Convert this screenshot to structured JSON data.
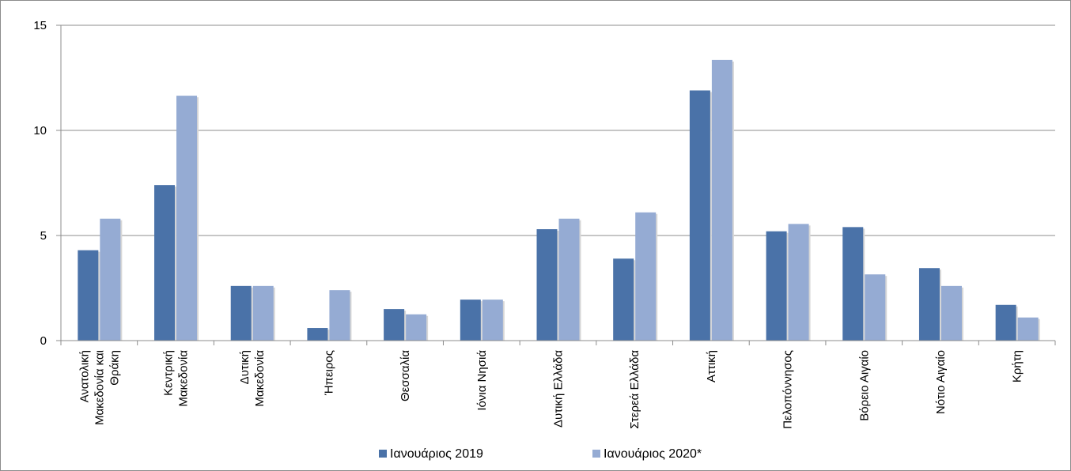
{
  "chart_data": {
    "type": "bar",
    "title": "",
    "xlabel": "",
    "ylabel": "",
    "ylim": [
      0,
      15
    ],
    "yticks": [
      0,
      5,
      10,
      15
    ],
    "grid": true,
    "legend_position": "bottom",
    "categories": [
      [
        "Ανατολική",
        "Μακεδονία και",
        "Θράκη"
      ],
      [
        "Κεντρική",
        "Μακεδονία"
      ],
      [
        "Δυτική",
        "Μακεδονία"
      ],
      [
        "Ήπειρος"
      ],
      [
        "Θεσσαλία"
      ],
      [
        "Ιόνια Νησιά"
      ],
      [
        "Δυτική Ελλάδα"
      ],
      [
        "Στερεά Ελλάδα"
      ],
      [
        "Αττική"
      ],
      [
        "Πελοπόννησος"
      ],
      [
        "Βόρειο Αιγαίο"
      ],
      [
        "Νότιο Αιγαίο"
      ],
      [
        "Κρήτη"
      ]
    ],
    "series": [
      {
        "name": "Ιανουάριος 2019",
        "color": "#4a72a8",
        "values": [
          4.3,
          7.4,
          2.6,
          0.6,
          1.5,
          1.95,
          5.3,
          3.9,
          11.9,
          5.2,
          5.4,
          3.45,
          1.7
        ]
      },
      {
        "name": "Ιανουάριος 2020*",
        "color": "#95abd3",
        "values": [
          5.8,
          11.65,
          2.6,
          2.4,
          1.25,
          1.95,
          5.8,
          6.1,
          13.35,
          5.55,
          3.15,
          2.6,
          1.1
        ]
      }
    ]
  }
}
